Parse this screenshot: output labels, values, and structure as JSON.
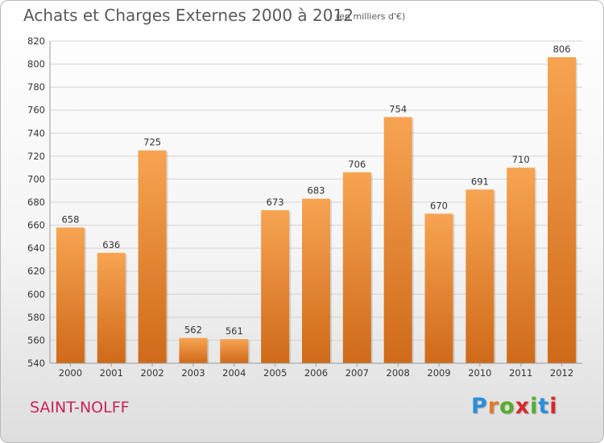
{
  "header": {
    "title": "Achats et Charges Externes 2000 à 2012",
    "unit": "(en milliers d'€)"
  },
  "footer": {
    "commune": "SAINT-NOLFF",
    "logo_letters": [
      "P",
      "r",
      "o",
      "x",
      "i",
      "t",
      "i"
    ],
    "logo_colors": [
      "#2a8fd8",
      "#e2792a",
      "#55ae2a",
      "#d8282a",
      "#55ae2a",
      "#2a8fd8",
      "#d8282a"
    ]
  },
  "colors": {
    "bar_top": "#f7a452",
    "bar_bottom": "#cf6a19",
    "grid": "#d3d3d3",
    "commune": "#c8235a"
  },
  "chart_data": {
    "type": "bar",
    "title": "Achats et Charges Externes 2000 à 2012",
    "xlabel": "",
    "ylabel": "",
    "categories": [
      "2000",
      "2001",
      "2002",
      "2003",
      "2004",
      "2005",
      "2006",
      "2007",
      "2008",
      "2009",
      "2010",
      "2011",
      "2012"
    ],
    "values": [
      658,
      636,
      725,
      562,
      561,
      673,
      683,
      706,
      754,
      670,
      691,
      710,
      806
    ],
    "ylim": [
      540,
      820
    ],
    "yticks": [
      540,
      560,
      580,
      600,
      620,
      640,
      660,
      680,
      700,
      720,
      740,
      760,
      780,
      800,
      820
    ],
    "grid": true
  }
}
